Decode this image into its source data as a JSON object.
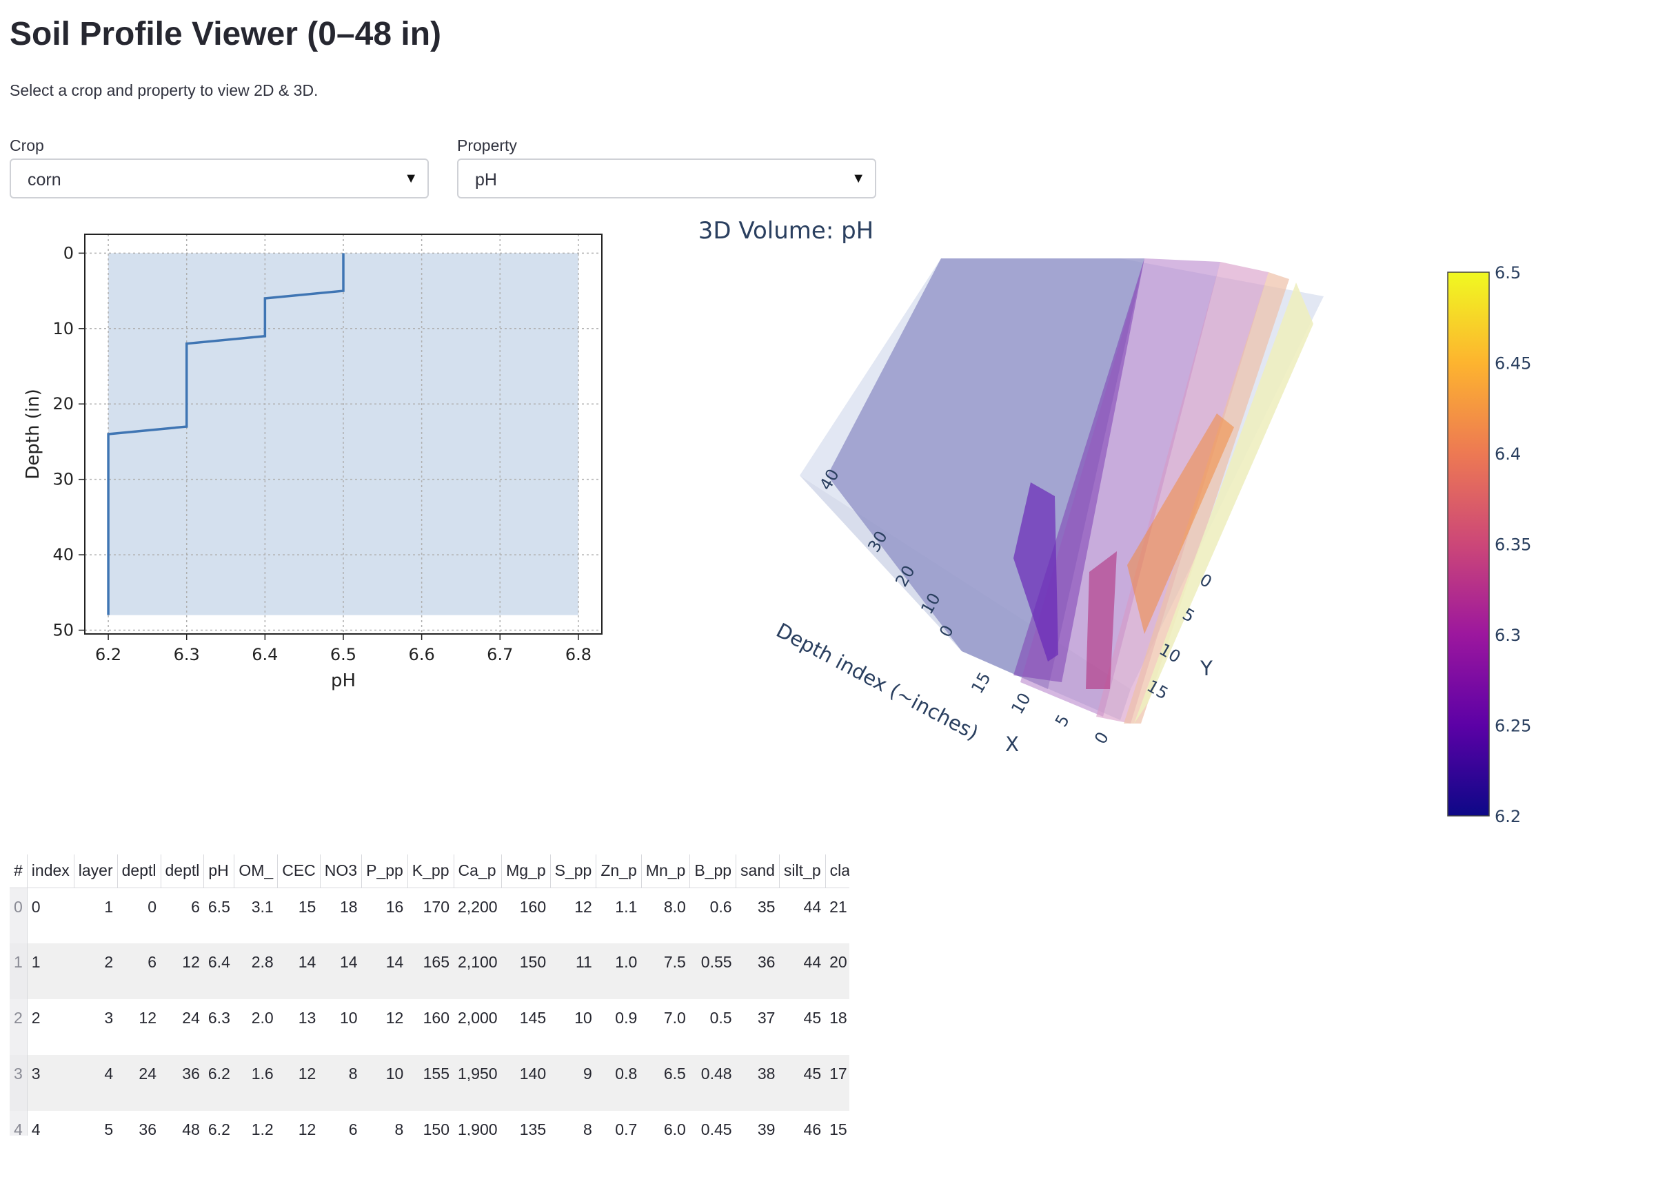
{
  "page": {
    "title": "Soil Profile Viewer (0–48 in)",
    "subtitle": "Select a crop and property to view 2D & 3D."
  },
  "controls": {
    "crop_label": "Crop",
    "crop_value": "corn",
    "property_label": "Property",
    "property_value": "pH"
  },
  "chart_data": [
    {
      "type": "line",
      "title": "",
      "xlabel": "pH",
      "ylabel": "Depth (in)",
      "xlim": [
        6.2,
        6.8
      ],
      "ylim": [
        50,
        0
      ],
      "y_inverted": true,
      "grid": true,
      "x_ticks": [
        "6.2",
        "6.3",
        "6.4",
        "6.5",
        "6.6",
        "6.7",
        "6.8"
      ],
      "y_ticks": [
        "0",
        "10",
        "20",
        "30",
        "40",
        "50"
      ],
      "shaded_band": {
        "x": [
          6.2,
          6.8
        ],
        "y": [
          0,
          48
        ],
        "color": "#d4e0ee"
      },
      "series": [
        {
          "color": "#3f75b3",
          "points": [
            [
              6.5,
              0
            ],
            [
              6.5,
              5
            ],
            [
              6.4,
              6
            ],
            [
              6.4,
              11
            ],
            [
              6.3,
              12
            ],
            [
              6.3,
              23
            ],
            [
              6.2,
              24
            ],
            [
              6.2,
              48
            ]
          ]
        }
      ]
    },
    {
      "type": "volume3d",
      "title": "3D Volume: pH",
      "x_axis_label": "X",
      "y_axis_label": "Y",
      "z_axis_label": "Depth index (~inches)",
      "x_ticks": [
        "0",
        "5",
        "10",
        "15"
      ],
      "y_ticks": [
        "0",
        "5",
        "10",
        "15"
      ],
      "z_ticks": [
        "0",
        "10",
        "20",
        "30",
        "40"
      ],
      "colorbar": {
        "min": 6.2,
        "max": 6.5,
        "ticks": [
          "6.2",
          "6.25",
          "6.3",
          "6.35",
          "6.4",
          "6.45",
          "6.5"
        ],
        "colorscale": [
          "#0d0887",
          "#5c01a6",
          "#9c179e",
          "#cc4778",
          "#ed7953",
          "#fdb42f",
          "#f0f921"
        ]
      }
    }
  ],
  "table": {
    "corner": "#",
    "columns": [
      "index",
      "layer",
      "deptl",
      "deptl",
      "pH",
      "OM_",
      "CEC",
      "NO3",
      "P_pp",
      "K_pp",
      "Ca_p",
      "Mg_p",
      "S_pp",
      "Zn_p",
      "Mn_p",
      "B_pp",
      "sand",
      "silt_p",
      "clay"
    ],
    "rows": [
      {
        "idx": "0",
        "cells": [
          "0",
          "1",
          "0",
          "6",
          "6.5",
          "3.1",
          "15",
          "18",
          "16",
          "170",
          "2,200",
          "160",
          "12",
          "1.1",
          "8.0",
          "0.6",
          "35",
          "44",
          "21"
        ]
      },
      {
        "idx": "1",
        "cells": [
          "1",
          "2",
          "6",
          "12",
          "6.4",
          "2.8",
          "14",
          "14",
          "14",
          "165",
          "2,100",
          "150",
          "11",
          "1.0",
          "7.5",
          "0.55",
          "36",
          "44",
          "20"
        ]
      },
      {
        "idx": "2",
        "cells": [
          "2",
          "3",
          "12",
          "24",
          "6.3",
          "2.0",
          "13",
          "10",
          "12",
          "160",
          "2,000",
          "145",
          "10",
          "0.9",
          "7.0",
          "0.5",
          "37",
          "45",
          "18"
        ]
      },
      {
        "idx": "3",
        "cells": [
          "3",
          "4",
          "24",
          "36",
          "6.2",
          "1.6",
          "12",
          "8",
          "10",
          "155",
          "1,950",
          "140",
          "9",
          "0.8",
          "6.5",
          "0.48",
          "38",
          "45",
          "17"
        ]
      },
      {
        "idx": "4",
        "cells": [
          "4",
          "5",
          "36",
          "48",
          "6.2",
          "1.2",
          "12",
          "6",
          "8",
          "150",
          "1,900",
          "135",
          "8",
          "0.7",
          "6.0",
          "0.45",
          "39",
          "46",
          "15"
        ]
      }
    ]
  }
}
